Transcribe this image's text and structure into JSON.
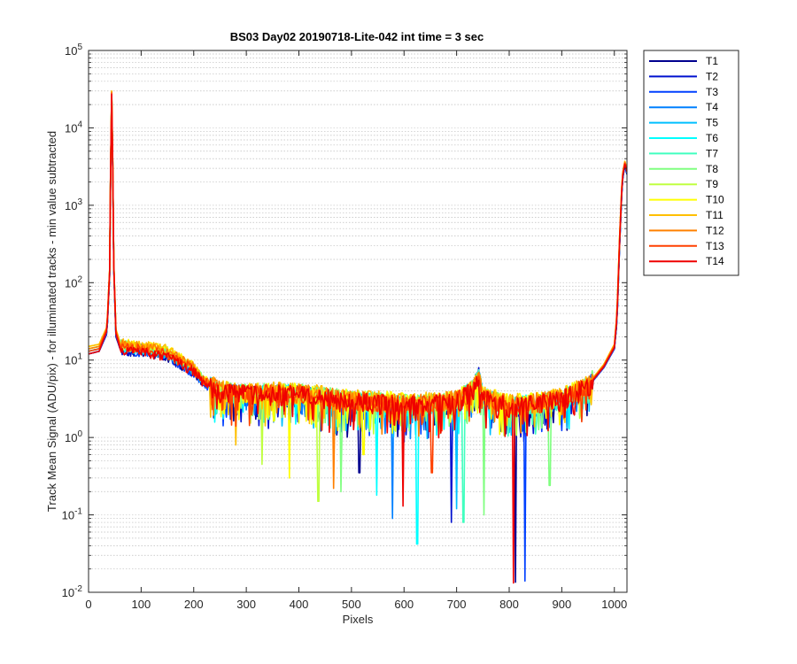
{
  "chart_data": {
    "type": "line",
    "title": "BS03 Day02 20190718-Lite-042 int time = 3 sec",
    "xlabel": "Pixels",
    "ylabel": "Track Mean Signal (ADU/pix) - for illuminated tracks - min value subtracted",
    "xlim": [
      0,
      1024
    ],
    "ylim": [
      0.01,
      100000
    ],
    "yscale": "log",
    "grid": true,
    "legend_position": "outside-top-right",
    "x_ticks": [
      "0",
      "100",
      "200",
      "300",
      "400",
      "500",
      "600",
      "700",
      "800",
      "900",
      "1000"
    ],
    "y_ticks": [
      {
        "base": "10",
        "exp": "-2"
      },
      {
        "base": "10",
        "exp": "-1"
      },
      {
        "base": "10",
        "exp": "0"
      },
      {
        "base": "10",
        "exp": "1"
      },
      {
        "base": "10",
        "exp": "2"
      },
      {
        "base": "10",
        "exp": "3"
      },
      {
        "base": "10",
        "exp": "4"
      },
      {
        "base": "10",
        "exp": "5"
      }
    ],
    "x": [
      0,
      20,
      35,
      40,
      42,
      44,
      46,
      48,
      52,
      60,
      80,
      100,
      150,
      200,
      220,
      250,
      300,
      350,
      400,
      450,
      500,
      550,
      600,
      650,
      700,
      730,
      742,
      750,
      800,
      850,
      900,
      950,
      980,
      1000,
      1005,
      1010,
      1015,
      1020,
      1024
    ],
    "series": [
      {
        "name": "T1",
        "color": "#00008f",
        "values": [
          12,
          13,
          22,
          120,
          2500,
          25000,
          3000,
          150,
          20,
          14,
          13,
          13,
          11,
          7,
          5,
          3.8,
          3.5,
          3.6,
          3.5,
          3.2,
          2.8,
          2.7,
          2.5,
          2.6,
          2.8,
          4.0,
          6.5,
          3.2,
          2.4,
          2.6,
          3.0,
          4.5,
          8.0,
          14,
          30,
          300,
          2000,
          3200,
          2500
        ]
      },
      {
        "name": "T2",
        "color": "#0010cf",
        "values": [
          12,
          13,
          22,
          125,
          2600,
          25500,
          3100,
          155,
          21,
          14,
          13,
          13,
          11,
          7,
          5,
          3.8,
          3.5,
          3.6,
          3.5,
          3.2,
          2.8,
          2.7,
          2.5,
          2.6,
          2.8,
          4.0,
          6.5,
          3.2,
          2.4,
          2.6,
          3.0,
          4.5,
          8.0,
          14,
          31,
          310,
          2050,
          3250,
          2550
        ]
      },
      {
        "name": "T3",
        "color": "#0040ff",
        "values": [
          12,
          13,
          23,
          128,
          2650,
          26000,
          3150,
          158,
          21,
          14,
          13,
          13,
          11,
          7,
          5,
          3.8,
          3.5,
          3.6,
          3.5,
          3.2,
          2.8,
          2.7,
          2.5,
          2.6,
          2.8,
          4.0,
          6.4,
          3.2,
          2.4,
          2.6,
          3.0,
          4.5,
          8.0,
          14,
          32,
          320,
          2100,
          3300,
          2600
        ]
      },
      {
        "name": "T4",
        "color": "#0080ff",
        "values": [
          13,
          14,
          23,
          130,
          2700,
          26500,
          3200,
          160,
          22,
          15,
          14,
          14,
          12,
          7.5,
          5.2,
          3.9,
          3.6,
          3.7,
          3.6,
          3.3,
          2.9,
          2.8,
          2.6,
          2.7,
          2.9,
          4.1,
          6.3,
          3.3,
          2.5,
          2.7,
          3.1,
          4.6,
          8.2,
          14.5,
          33,
          330,
          2150,
          3350,
          2650
        ]
      },
      {
        "name": "T5",
        "color": "#00bfff",
        "values": [
          13,
          14,
          24,
          132,
          2750,
          27000,
          3250,
          162,
          22,
          15,
          14,
          14,
          12,
          7.5,
          5.2,
          3.9,
          3.6,
          3.7,
          3.6,
          3.3,
          2.9,
          2.8,
          2.6,
          2.7,
          2.9,
          4.1,
          6.2,
          3.3,
          2.5,
          2.7,
          3.1,
          4.6,
          8.2,
          14.5,
          34,
          340,
          2200,
          3400,
          2700
        ]
      },
      {
        "name": "T6",
        "color": "#00ffff",
        "values": [
          13,
          14,
          24,
          135,
          2800,
          27500,
          3300,
          165,
          23,
          15,
          14,
          14,
          12,
          7.6,
          5.3,
          4.0,
          3.7,
          3.8,
          3.7,
          3.4,
          3.0,
          2.9,
          2.7,
          2.8,
          3.0,
          4.2,
          6.1,
          3.4,
          2.6,
          2.8,
          3.2,
          4.7,
          8.4,
          15,
          35,
          350,
          2250,
          3450,
          2750
        ]
      },
      {
        "name": "T7",
        "color": "#40ffbf",
        "values": [
          14,
          15,
          25,
          138,
          2850,
          28000,
          3350,
          168,
          23,
          16,
          15,
          15,
          13,
          7.8,
          5.4,
          4.0,
          3.7,
          3.8,
          3.7,
          3.4,
          3.0,
          2.9,
          2.7,
          2.8,
          3.0,
          4.2,
          6.0,
          3.4,
          2.6,
          2.8,
          3.2,
          4.7,
          8.4,
          15,
          36,
          360,
          2300,
          3500,
          2800
        ]
      },
      {
        "name": "T8",
        "color": "#80ff80",
        "values": [
          14,
          15,
          25,
          140,
          2900,
          28500,
          3400,
          170,
          24,
          16,
          15,
          15,
          13,
          7.8,
          5.4,
          4.1,
          3.8,
          3.9,
          3.8,
          3.5,
          3.1,
          3.0,
          2.8,
          2.9,
          3.1,
          4.3,
          5.9,
          3.5,
          2.7,
          2.9,
          3.3,
          4.8,
          8.6,
          15.5,
          37,
          370,
          2350,
          3550,
          2850
        ]
      },
      {
        "name": "T9",
        "color": "#bfff40",
        "values": [
          14,
          15,
          26,
          142,
          2950,
          29000,
          3450,
          172,
          24,
          16,
          15,
          15,
          13,
          8.0,
          5.5,
          4.1,
          3.8,
          3.9,
          3.8,
          3.5,
          3.1,
          3.0,
          2.8,
          2.9,
          3.1,
          4.3,
          5.8,
          3.5,
          2.7,
          2.9,
          3.3,
          4.8,
          8.6,
          15.5,
          38,
          380,
          2400,
          3600,
          2900
        ]
      },
      {
        "name": "T10",
        "color": "#ffff00",
        "values": [
          15,
          16,
          26,
          145,
          3000,
          29500,
          3500,
          175,
          25,
          17,
          16,
          16,
          14,
          8.2,
          5.6,
          4.2,
          3.9,
          4.0,
          3.9,
          3.6,
          3.2,
          3.1,
          2.9,
          3.0,
          3.2,
          4.4,
          5.7,
          3.6,
          2.8,
          3.0,
          3.4,
          4.9,
          8.8,
          16,
          39,
          390,
          2450,
          3650,
          2950
        ]
      },
      {
        "name": "T11",
        "color": "#ffbf00",
        "values": [
          15,
          16,
          27,
          148,
          3050,
          30000,
          3550,
          178,
          25,
          17,
          16,
          16,
          14,
          8.2,
          5.6,
          4.2,
          3.9,
          4.0,
          3.9,
          3.6,
          3.2,
          3.1,
          2.9,
          3.0,
          3.2,
          4.4,
          5.6,
          3.6,
          2.8,
          3.0,
          3.4,
          4.9,
          8.8,
          16,
          40,
          400,
          2500,
          3700,
          3000
        ]
      },
      {
        "name": "T12",
        "color": "#ff8000",
        "values": [
          14,
          15,
          26,
          145,
          3000,
          29000,
          3450,
          172,
          24,
          16,
          15,
          15,
          13,
          8.0,
          5.5,
          4.1,
          3.8,
          3.9,
          3.8,
          3.5,
          3.1,
          3.0,
          2.8,
          2.9,
          3.1,
          4.3,
          5.5,
          3.5,
          2.7,
          2.9,
          3.3,
          4.8,
          8.6,
          15.5,
          38,
          380,
          2400,
          3600,
          2900
        ]
      },
      {
        "name": "T13",
        "color": "#ff4000",
        "values": [
          13,
          14,
          25,
          140,
          2900,
          28000,
          3350,
          168,
          23,
          15,
          14,
          14,
          12,
          7.6,
          5.3,
          4.0,
          3.7,
          3.8,
          3.7,
          3.4,
          3.0,
          2.9,
          2.7,
          2.8,
          3.0,
          4.2,
          5.4,
          3.4,
          2.6,
          2.8,
          3.2,
          4.7,
          8.4,
          15,
          36,
          360,
          2300,
          3500,
          2800
        ]
      },
      {
        "name": "T14",
        "color": "#ef0000",
        "values": [
          12,
          13,
          24,
          135,
          2800,
          27000,
          3250,
          162,
          22,
          14,
          13,
          13,
          11,
          7.2,
          5.0,
          3.9,
          3.6,
          3.7,
          3.6,
          3.3,
          2.9,
          2.8,
          2.6,
          2.7,
          2.9,
          4.1,
          5.3,
          3.3,
          2.5,
          2.7,
          3.1,
          4.6,
          8.2,
          14.5,
          34,
          340,
          2200,
          3400,
          2700
        ]
      }
    ],
    "dips": [
      {
        "series": "T1",
        "x": 515,
        "y": 0.35
      },
      {
        "series": "T1",
        "x": 812,
        "y": 0.0135
      },
      {
        "series": "T2",
        "x": 690,
        "y": 0.08
      },
      {
        "series": "T3",
        "x": 830,
        "y": 0.014
      },
      {
        "series": "T4",
        "x": 578,
        "y": 0.09
      },
      {
        "series": "T5",
        "x": 700,
        "y": 0.12
      },
      {
        "series": "T6",
        "x": 625,
        "y": 0.042
      },
      {
        "series": "T6",
        "x": 548,
        "y": 0.18
      },
      {
        "series": "T7",
        "x": 713,
        "y": 0.08
      },
      {
        "series": "T8",
        "x": 480,
        "y": 0.2
      },
      {
        "series": "T8",
        "x": 752,
        "y": 0.1
      },
      {
        "series": "T8",
        "x": 877,
        "y": 0.24
      },
      {
        "series": "T9",
        "x": 437,
        "y": 0.15
      },
      {
        "series": "T9",
        "x": 330,
        "y": 0.45
      },
      {
        "series": "T10",
        "x": 382,
        "y": 0.3
      },
      {
        "series": "T10",
        "x": 523,
        "y": 0.6
      },
      {
        "series": "T11",
        "x": 280,
        "y": 0.8
      },
      {
        "series": "T12",
        "x": 466,
        "y": 0.22
      },
      {
        "series": "T13",
        "x": 653,
        "y": 0.35
      },
      {
        "series": "T14",
        "x": 598,
        "y": 0.13
      },
      {
        "series": "T14",
        "x": 808,
        "y": 0.0132
      }
    ]
  }
}
